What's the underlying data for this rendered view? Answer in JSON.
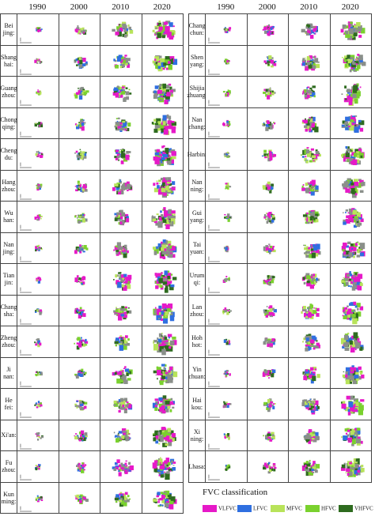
{
  "years": [
    "1990",
    "2000",
    "2010",
    "2020"
  ],
  "left_cities": [
    "Bei\njing:",
    "Shang\nhai:",
    "Guang\nzhou:",
    "Chong\nqing:",
    "Cheng\ndu:",
    "Hang\nzhou:",
    "Wu\nhan:",
    "Nan\njing:",
    "Tian\njin:",
    "Chang\nsha:",
    "Zheng\nzhou:",
    "Ji\nnan:",
    "He\nfei:",
    "Xi'an:",
    "Fu\nzhou:",
    "Kun\nming:"
  ],
  "right_cities": [
    "Chang\nchun:",
    "Shen\nyang:",
    "Shijia\nzhuang:",
    "Nan\nchang:",
    "Harbin:",
    "Nan\nning:",
    "Gui\nyang:",
    "Tai\nyuan:",
    "Urum\nqi:",
    "Lan\nzhou:",
    "Hoh\nhot:",
    "Yin\nchuan:",
    "Hai\nkou:",
    "Xi\nning:",
    "Lhasa:"
  ],
  "legend": {
    "title": "FVC classification",
    "items": [
      {
        "label": "VLFVC",
        "color": "#e619c8"
      },
      {
        "label": "LFVC",
        "color": "#2f6fe0"
      },
      {
        "label": "MFVC",
        "color": "#b8e35a"
      },
      {
        "label": "HFVC",
        "color": "#7ad12e"
      },
      {
        "label": "VHFVC",
        "color": "#2e6b1f"
      }
    ]
  },
  "colors": {
    "VLFVC": "#e619c8",
    "LFVC": "#2f6fe0",
    "MFVC": "#b8e35a",
    "HFVC": "#7ad12e",
    "VHFVC": "#2e6b1f",
    "gray": "#8a8f8a"
  }
}
